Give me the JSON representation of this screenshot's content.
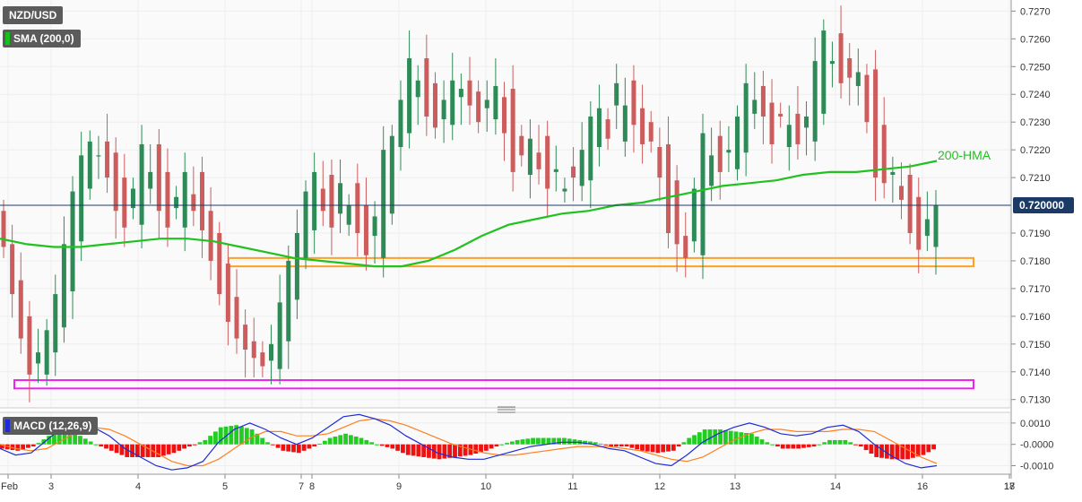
{
  "header": {
    "symbol": "NZD/USD",
    "indicator": "SMA (200,0)"
  },
  "macd_panel": {
    "label": "MACD (12,26,9)"
  },
  "current_price_label": "0.720000",
  "annotation_label": "200-HMA",
  "colors": {
    "bull": "#2e8b57",
    "bear": "#cd5c5c",
    "hma": "#1fc21f",
    "zone_support": "#ff9f1c",
    "zone_low": "#ee22ee",
    "macd_line": "#1f2bd6",
    "signal_line": "#ff7f1e",
    "hist_pos": "#22cc22",
    "hist_neg": "#ee1111",
    "price_line": "#1c3a66"
  },
  "chart_data": [
    {
      "type": "candlestick",
      "title": "NZD/USD",
      "x_ticks": [
        "Feb",
        "3",
        "4",
        "5",
        "7",
        "8",
        "9",
        "10",
        "11",
        "12",
        "13",
        "14",
        "16",
        "17",
        "18"
      ],
      "y_ticks": [
        "0.7270",
        "0.7260",
        "0.7250",
        "0.7240",
        "0.7230",
        "0.7220",
        "0.7210",
        "0.7190",
        "0.7180",
        "0.7170",
        "0.7160",
        "0.7150",
        "0.7140",
        "0.7130"
      ],
      "ylim": [
        0.7127,
        0.7274
      ],
      "current_price": 0.72,
      "candles_close": [
        0.7185,
        0.7168,
        0.7152,
        0.7139,
        0.7147,
        0.7155,
        0.7168,
        0.7186,
        0.7205,
        0.7218,
        0.7223,
        0.7218,
        0.721,
        0.7198,
        0.7192,
        0.7206,
        0.7222,
        0.7212,
        0.7198,
        0.7192,
        0.7203,
        0.7212,
        0.7198,
        0.7191,
        0.718,
        0.7168,
        0.7158,
        0.7152,
        0.7148,
        0.7145,
        0.7142,
        0.715,
        0.7165,
        0.718,
        0.719,
        0.7205,
        0.7212,
        0.7198,
        0.7192,
        0.7208,
        0.72,
        0.719,
        0.7182,
        0.7196,
        0.722,
        0.7225,
        0.7238,
        0.7253,
        0.7245,
        0.7232,
        0.7228,
        0.7238,
        0.7245,
        0.7242,
        0.7236,
        0.723,
        0.7238,
        0.7243,
        0.7226,
        0.7212,
        0.7218,
        0.7224,
        0.7213,
        0.7206,
        0.7213,
        0.7206,
        0.721,
        0.722,
        0.7232,
        0.7235,
        0.7224,
        0.7244,
        0.7236,
        0.7229,
        0.7222,
        0.7223,
        0.721,
        0.719,
        0.7186,
        0.7181,
        0.7206,
        0.7226,
        0.7218,
        0.7212,
        0.722,
        0.7232,
        0.7244,
        0.7238,
        0.7232,
        0.7222,
        0.7232,
        0.7229,
        0.7222,
        0.7232,
        0.7252,
        0.7263,
        0.7252,
        0.7244,
        0.7246,
        0.7248,
        0.723,
        0.721,
        0.7208,
        0.7212,
        0.7202,
        0.719,
        0.7184,
        0.7195,
        0.72
      ],
      "reference_values": [
        0.7198,
        0.7186,
        0.7173,
        0.716,
        0.7143,
        0.7139,
        0.7147,
        0.7156,
        0.7169,
        0.7187,
        0.7206,
        0.7218,
        0.7223,
        0.7219,
        0.721,
        0.7199,
        0.7193,
        0.7206,
        0.7222,
        0.7212,
        0.7199,
        0.7192,
        0.7204,
        0.7212,
        0.7198,
        0.719,
        0.7179,
        0.7167,
        0.7157,
        0.7151,
        0.7147,
        0.7144,
        0.7141,
        0.7151,
        0.7166,
        0.7181,
        0.7191,
        0.7206,
        0.7211,
        0.7197,
        0.7193,
        0.7208,
        0.72,
        0.7189,
        0.7181,
        0.7197,
        0.7221,
        0.7226,
        0.7239,
        0.7253,
        0.7244,
        0.7231,
        0.7229,
        0.7239,
        0.7245,
        0.7241,
        0.7235,
        0.7231,
        0.7239,
        0.7242,
        0.7225,
        0.7211,
        0.7219,
        0.7225,
        0.7212,
        0.7205,
        0.7214,
        0.7207,
        0.7209,
        0.7221,
        0.7231,
        0.7236,
        0.7223,
        0.7245,
        0.7235,
        0.723,
        0.7221,
        0.7222,
        0.7209,
        0.7189,
        0.7187,
        0.7182,
        0.7207,
        0.7225,
        0.7219,
        0.7213,
        0.7219,
        0.7233,
        0.7243,
        0.7237,
        0.7233,
        0.7221,
        0.7233,
        0.7228,
        0.7223,
        0.7233,
        0.7251,
        0.7262,
        0.7253,
        0.7243,
        0.7247,
        0.7249,
        0.7229,
        0.7211,
        0.7207,
        0.7211,
        0.7203,
        0.7189,
        0.7185,
        0.7196
      ],
      "hma_200": [
        0.7188,
        0.7186,
        0.7185,
        0.7185,
        0.7186,
        0.7187,
        0.7188,
        0.7188,
        0.7187,
        0.7185,
        0.7183,
        0.7181,
        0.718,
        0.7179,
        0.7178,
        0.7178,
        0.718,
        0.7184,
        0.7189,
        0.7193,
        0.7195,
        0.7197,
        0.7198,
        0.72,
        0.7201,
        0.7203,
        0.7205,
        0.7207,
        0.7208,
        0.7209,
        0.7211,
        0.7212,
        0.7212,
        0.7213,
        0.7214,
        0.7216
      ],
      "support_zone": [
        0.7178,
        0.7181
      ],
      "low_zone": [
        0.7134,
        0.7137
      ],
      "annotation": "200-HMA"
    },
    {
      "type": "macd",
      "title": "MACD (12,26,9)",
      "y_ticks": [
        "0.0010",
        "-0.0000",
        "-0.0010"
      ],
      "ylim": [
        -0.0014,
        0.0015
      ],
      "macd": [
        -0.0002,
        -0.0005,
        -0.0004,
        0.0002,
        0.0008,
        0.001,
        0.0008,
        0.0004,
        -0.0002,
        -0.0006,
        -0.001,
        -0.0012,
        -0.0011,
        -0.0008,
        0.0001,
        0.0007,
        0.001,
        0.0007,
        0.0003,
        0.0,
        0.0003,
        0.0008,
        0.0013,
        0.0014,
        0.0012,
        0.0009,
        0.0004,
        0.0,
        -0.0004,
        -0.0006,
        -0.0007,
        -0.0007,
        -0.0005,
        -0.0003,
        -0.0001,
        0.0,
        0.0001,
        0.0001,
        0.0,
        -0.0002,
        -0.0003,
        -0.0006,
        -0.0009,
        -0.001,
        -0.0005,
        0.0001,
        0.0005,
        0.0008,
        0.001,
        0.0008,
        0.0005,
        0.0004,
        0.0005,
        0.0008,
        0.0009,
        0.0006,
        0.0,
        -0.0005,
        -0.0009,
        -0.0011,
        -0.001
      ],
      "signal": [
        0.0,
        -0.0002,
        -0.0003,
        -0.0002,
        0.0002,
        0.0006,
        0.0008,
        0.0007,
        0.0004,
        0.0,
        -0.0004,
        -0.0008,
        -0.001,
        -0.001,
        -0.0007,
        -0.0002,
        0.0003,
        0.0006,
        0.0006,
        0.0004,
        0.0004,
        0.0005,
        0.0008,
        0.0011,
        0.0012,
        0.0011,
        0.0009,
        0.0006,
        0.0003,
        0.0,
        -0.0002,
        -0.0004,
        -0.0005,
        -0.0005,
        -0.0004,
        -0.0003,
        -0.0002,
        -0.0001,
        -0.0001,
        -0.0001,
        -0.0002,
        -0.0003,
        -0.0005,
        -0.0007,
        -0.0008,
        -0.0006,
        -0.0002,
        0.0002,
        0.0005,
        0.0007,
        0.0007,
        0.0006,
        0.0006,
        0.0006,
        0.0007,
        0.0007,
        0.0006,
        0.0002,
        -0.0002,
        -0.0006,
        -0.0009
      ]
    }
  ]
}
